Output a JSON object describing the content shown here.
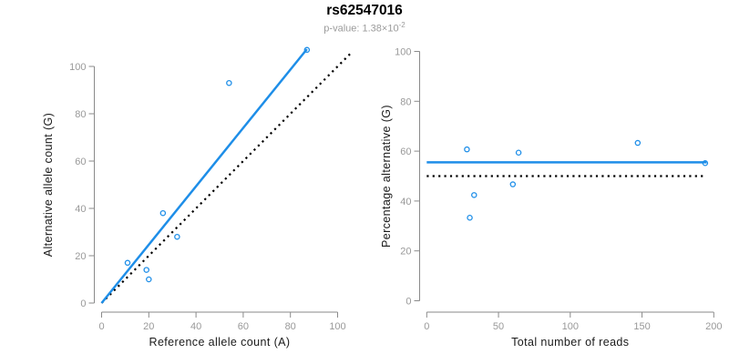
{
  "header": {
    "title": "rs62547016",
    "subtitle_prefix": "p-value: 1.38×10",
    "subtitle_exponent": "-2"
  },
  "colors": {
    "blue": "#1E8EE8",
    "black": "#000000",
    "axis_gray": "#8A8A8A",
    "tick_label_gray": "#999999",
    "axis_title_color": "#1A1A1A",
    "subtitle_gray": "#9B9B9B"
  },
  "chart_data": [
    {
      "type": "scatter",
      "xlabel": "Reference allele count (A)",
      "ylabel": "Alternative allele count (G)",
      "xlim": [
        0,
        106
      ],
      "ylim": [
        0,
        107.5
      ],
      "x_ticks": [
        0,
        20,
        40,
        60,
        80,
        100
      ],
      "y_ticks": [
        0,
        20,
        40,
        60,
        80,
        100
      ],
      "grid": false,
      "legend": "none",
      "points": [
        [
          11,
          17
        ],
        [
          19,
          14
        ],
        [
          20,
          10
        ],
        [
          26,
          38
        ],
        [
          32,
          28
        ],
        [
          54,
          93
        ],
        [
          87,
          107
        ]
      ],
      "lines": [
        {
          "name": "identity-line",
          "role": "y equals x reference",
          "x1": 0,
          "y1": 0,
          "x2": 106,
          "y2": 106,
          "style": "dotted",
          "color": "black",
          "width": 2.2
        },
        {
          "name": "regression-line",
          "role": "fit through origin",
          "x1": 0,
          "y1": 0,
          "x2": 87,
          "y2": 107.3,
          "style": "solid",
          "color": "blue",
          "width": 2.5
        }
      ]
    },
    {
      "type": "scatter",
      "xlabel": "Total number of reads",
      "ylabel": "Percentage alternative (G)",
      "xlim": [
        0,
        200
      ],
      "ylim": [
        0,
        100
      ],
      "x_ticks": [
        0,
        50,
        100,
        150,
        200
      ],
      "y_ticks": [
        0,
        20,
        40,
        60,
        80,
        100
      ],
      "grid": false,
      "legend": "none",
      "points": [
        [
          28,
          60.7
        ],
        [
          30,
          33.3
        ],
        [
          33,
          42.4
        ],
        [
          60,
          46.7
        ],
        [
          64,
          59.4
        ],
        [
          147,
          63.3
        ],
        [
          194,
          55.2
        ]
      ],
      "lines": [
        {
          "name": "fifty-percent-reference-line",
          "role": "50% reference",
          "x1": 0,
          "y1": 50,
          "x2": 194,
          "y2": 50,
          "style": "dotted",
          "color": "black",
          "width": 2.2
        },
        {
          "name": "mean-percentage-line",
          "role": "mean alternative percentage",
          "x1": 0,
          "y1": 55.5,
          "x2": 195,
          "y2": 55.5,
          "style": "solid",
          "color": "blue",
          "width": 2.5
        }
      ]
    }
  ]
}
